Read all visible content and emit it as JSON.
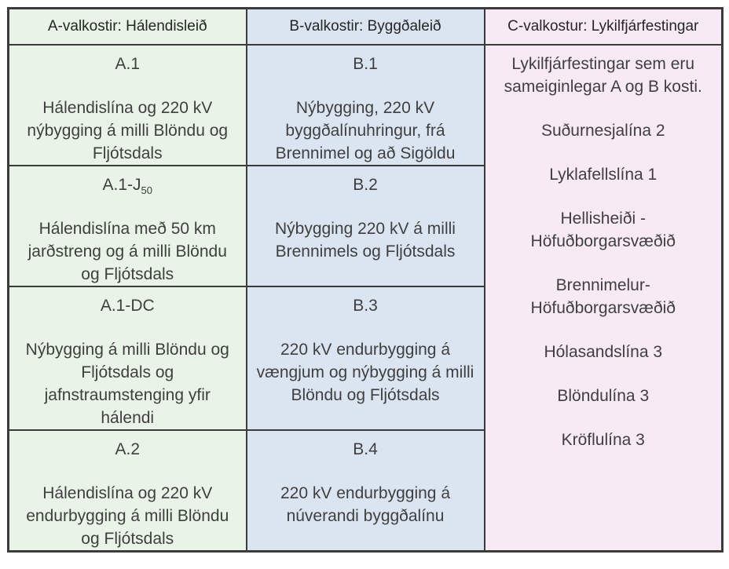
{
  "table": {
    "colors": {
      "column_a_bg": "#eaf3e8",
      "column_b_bg": "#dbe5f2",
      "column_c_bg": "#f7eaf5",
      "border": "#3b3b3b",
      "text": "#3f3f3f"
    },
    "columns": [
      {
        "header": "A-valkostir: Hálendisleið",
        "cells": [
          {
            "label": "A.1",
            "label_sub": "",
            "body": "Hálendislína og 220 kV nýbygging á milli Blöndu og  Fljótsdals"
          },
          {
            "label": "A.1-J",
            "label_sub": "50",
            "body": "Hálendislína með 50 km jarðstreng og á milli Blöndu og  Fljótsdals"
          },
          {
            "label": "A.1-DC",
            "label_sub": "",
            "body": "Nýbygging á milli Blöndu og  Fljótsdals og jafnstraumstenging yfir hálendi"
          },
          {
            "label": "A.2",
            "label_sub": "",
            "body": "Hálendislína og 220 kV endurbygging á milli Blöndu og  Fljótsdals"
          }
        ]
      },
      {
        "header": "B-valkostir: Byggðaleið",
        "cells": [
          {
            "label": "B.1",
            "label_sub": "",
            "body": "Nýbygging, 220 kV byggðalínuhringur, frá Brennimel og að Sigöldu"
          },
          {
            "label": "B.2",
            "label_sub": "",
            "body": "Nýbygging 220 kV á milli Brennimels og  Fljótsdals"
          },
          {
            "label": "B.3",
            "label_sub": "",
            "body": "220 kV endurbygging á vængjum og  nýbygging á milli Blöndu og  Fljótsdals"
          },
          {
            "label": "B.4",
            "label_sub": "",
            "body": "220 kV endurbygging á núverandi byggðalínu"
          }
        ]
      },
      {
        "header": "C-valkostur: Lykilfjárfestingar",
        "merged_cell": {
          "paragraphs": [
            "Lykilfjárfestingar sem eru sameiginlegar A og B kosti.",
            "Suðurnesjalína 2",
            "Lyklafellslína 1",
            "Hellisheiði - Höfuðborgarsvæðið",
            "Brennimelur-Höfuðborgarsvæðið",
            "Hólasandslína 3",
            "Blöndulína 3",
            "Kröflulína 3"
          ]
        }
      }
    ]
  }
}
